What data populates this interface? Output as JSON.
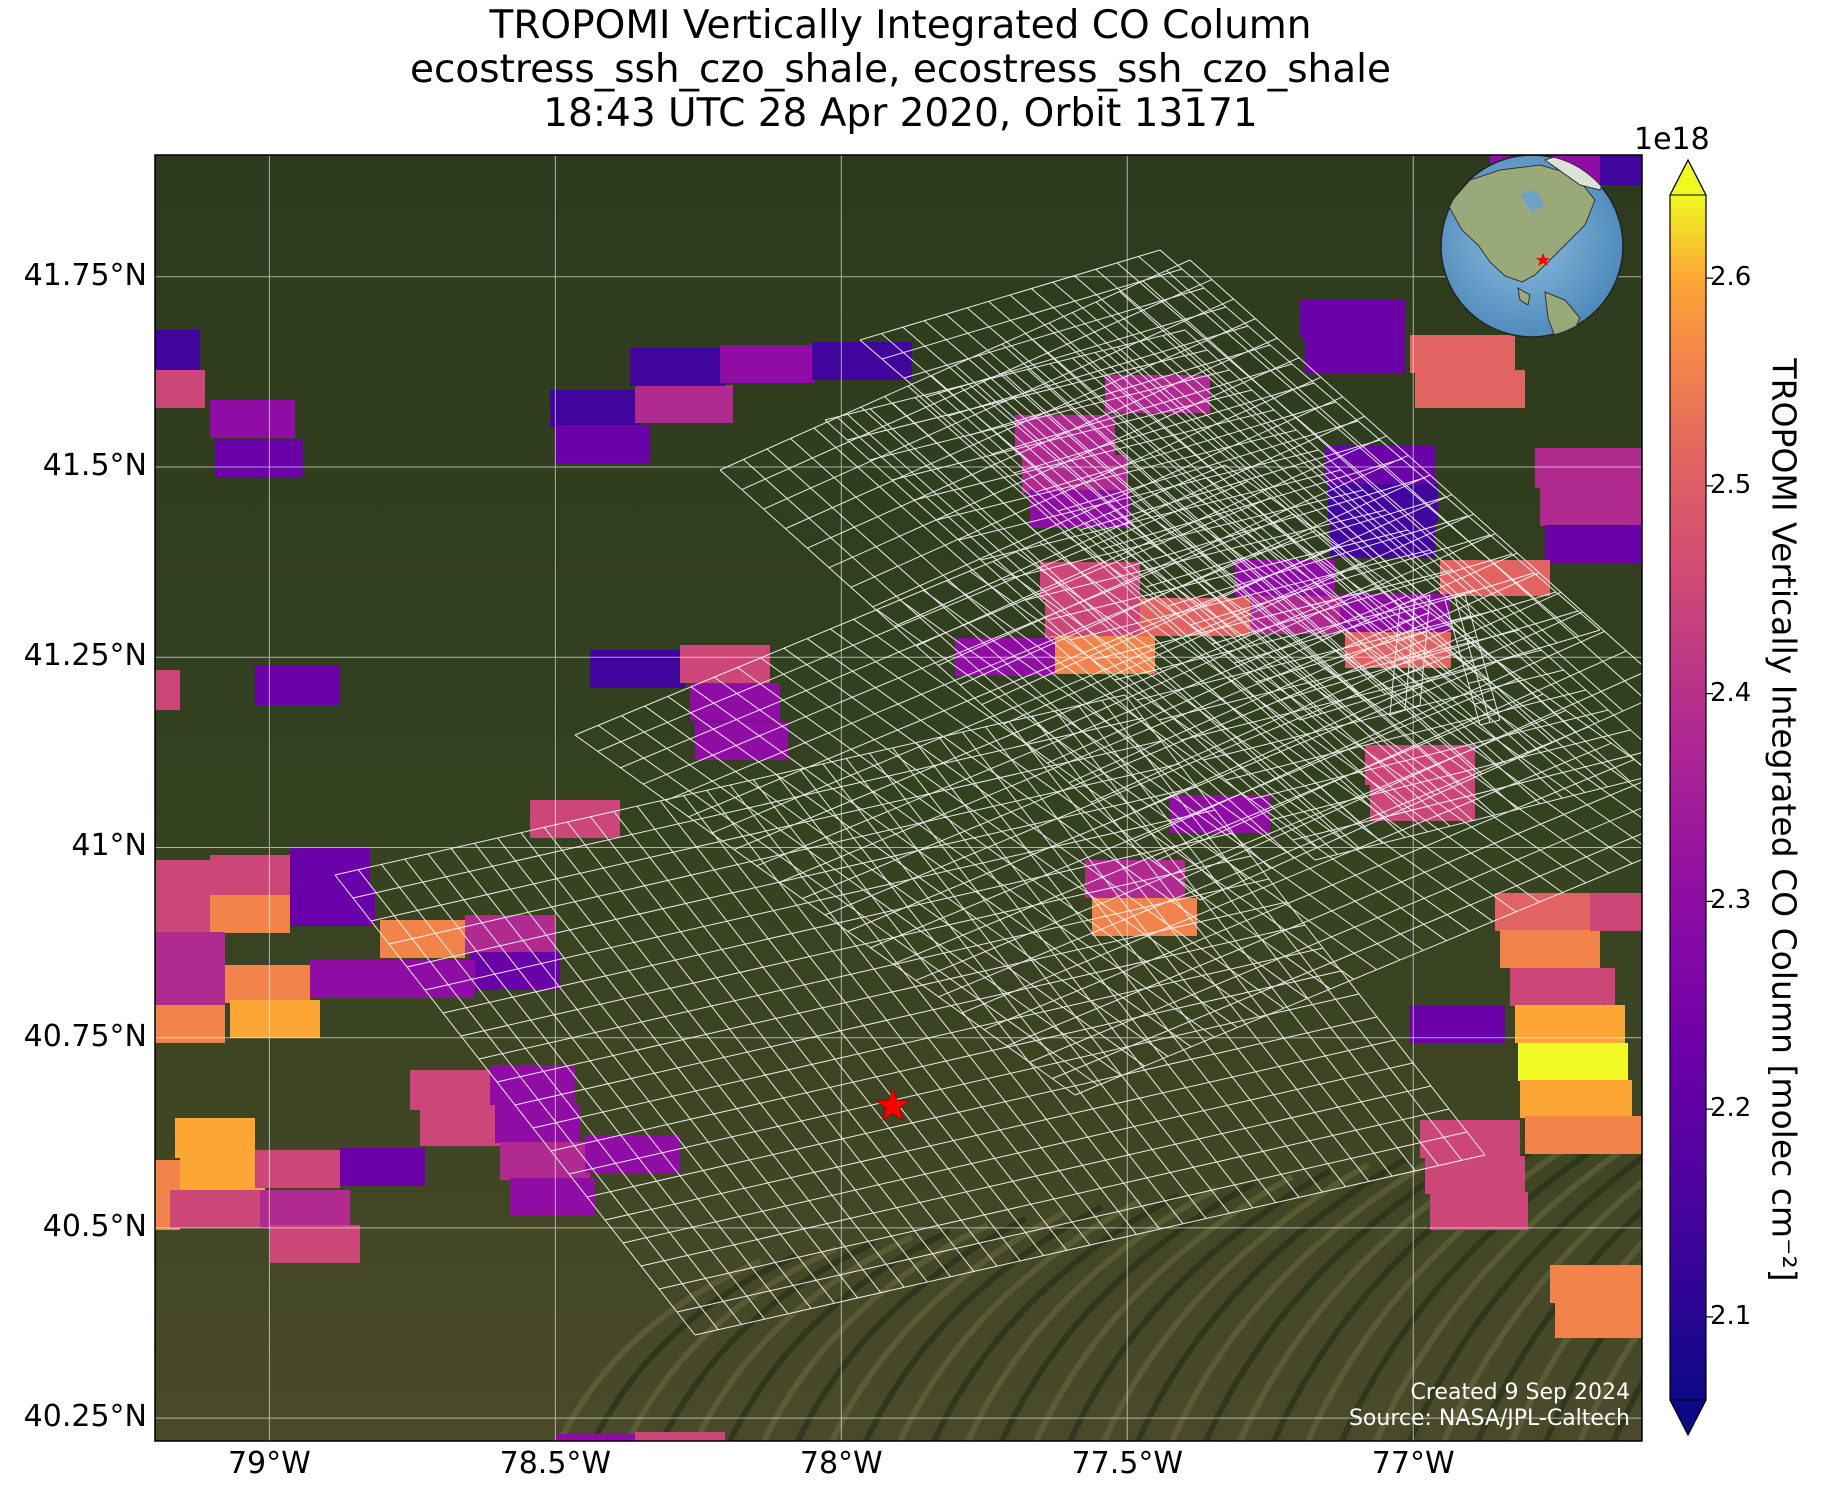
{
  "title": {
    "line1": "TROPOMI Vertically Integrated CO Column",
    "line2": "ecostress_ssh_czo_shale, ecostress_ssh_czo_shale",
    "line3": "18:43 UTC 28 Apr 2020, Orbit 13171"
  },
  "map": {
    "lon_range": [
      -79.2,
      -76.6
    ],
    "lat_range": [
      40.22,
      41.91
    ],
    "x_ticks": [
      "79°W",
      "78.5°W",
      "78°W",
      "77.5°W",
      "77°W"
    ],
    "y_ticks": [
      "41.75°N",
      "41.5°N",
      "41.25°N",
      "41°N",
      "40.75°N",
      "40.5°N",
      "40.25°N"
    ],
    "target_marker": {
      "icon": "red-star-icon",
      "lon": -77.91,
      "lat": 40.66
    },
    "credit_line1": "Created 9 Sep 2024",
    "credit_line2": "Source: NASA/JPL-Caltech",
    "inset": {
      "icon": "globe-icon",
      "description_marker": "red-star-icon"
    },
    "basemap": "satellite-imagery",
    "overlay": "ecostress-footprint-grid"
  },
  "colorbar": {
    "exponent": "1e18",
    "label": "TROPOMI Vertically Integrated CO Column [molec cm⁻²]",
    "ticks": [
      "2.1",
      "2.2",
      "2.3",
      "2.4",
      "2.5",
      "2.6"
    ],
    "range": [
      2.06,
      2.64
    ],
    "colormap": "plasma",
    "extend": "both"
  }
}
